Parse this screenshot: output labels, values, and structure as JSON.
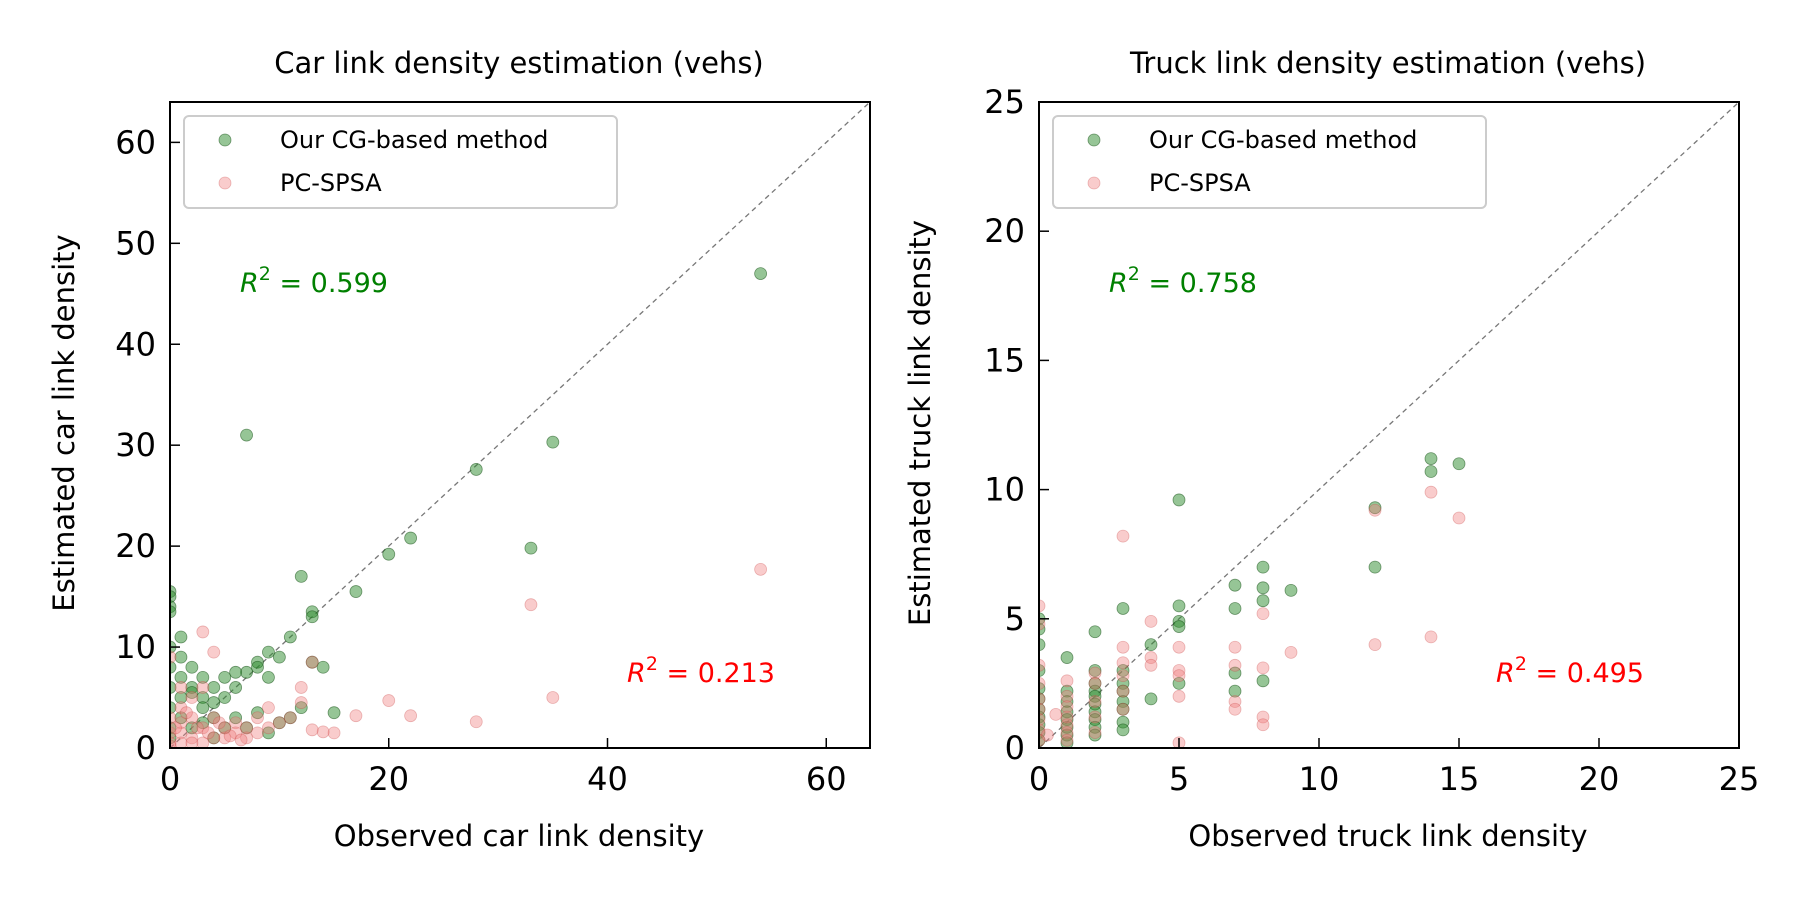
{
  "chart_data": [
    {
      "type": "scatter",
      "title": "Car link density estimation (vehs)",
      "xlabel": "Observed car link density",
      "ylabel": "Estimated car link density",
      "xlim": [
        0,
        64
      ],
      "ylim": [
        0,
        64
      ],
      "xticks": [
        0,
        20,
        40,
        60
      ],
      "yticks": [
        0,
        10,
        20,
        30,
        40,
        50,
        60
      ],
      "diagonal": true,
      "legend": {
        "position": "top-left",
        "entries": [
          "Our CG-based method",
          "PC-SPSA"
        ]
      },
      "annotations": [
        {
          "series": "Our CG-based method",
          "r2_label": "= 0.599",
          "anchor": "upper-left"
        },
        {
          "series": "PC-SPSA",
          "r2_label": "= 0.213",
          "anchor": "lower-right"
        }
      ],
      "series": [
        {
          "name": "Our CG-based method",
          "color": "#2e8b2e",
          "points": [
            [
              54,
              47
            ],
            [
              35,
              30.3
            ],
            [
              28,
              27.6
            ],
            [
              7,
              31
            ],
            [
              22,
              20.8
            ],
            [
              20,
              19.2
            ],
            [
              33,
              19.8
            ],
            [
              17,
              15.5
            ],
            [
              12,
              17
            ],
            [
              13,
              13.5
            ],
            [
              13,
              13
            ],
            [
              11,
              11
            ],
            [
              14,
              8
            ],
            [
              15,
              3.5
            ],
            [
              10,
              9
            ],
            [
              9,
              9.5
            ],
            [
              9,
              7
            ],
            [
              8,
              8.5
            ],
            [
              8,
              8
            ],
            [
              7,
              7.5
            ],
            [
              6,
              7.5
            ],
            [
              6,
              6
            ],
            [
              5,
              7
            ],
            [
              5,
              5
            ],
            [
              4,
              6
            ],
            [
              4,
              4.5
            ],
            [
              3,
              5
            ],
            [
              3,
              4
            ],
            [
              3,
              7
            ],
            [
              2,
              6
            ],
            [
              2,
              5.5
            ],
            [
              2,
              8
            ],
            [
              1,
              11
            ],
            [
              1,
              9
            ],
            [
              1,
              7
            ],
            [
              1,
              5
            ],
            [
              1,
              3
            ],
            [
              0,
              15.5
            ],
            [
              0,
              15
            ],
            [
              0,
              14
            ],
            [
              0,
              13.5
            ],
            [
              0,
              10
            ],
            [
              0,
              8
            ],
            [
              0,
              6
            ],
            [
              0,
              4
            ],
            [
              0,
              2
            ],
            [
              0,
              1
            ],
            [
              2,
              2
            ],
            [
              3,
              2.5
            ],
            [
              4,
              3
            ],
            [
              4,
              1
            ],
            [
              5,
              2
            ],
            [
              6,
              3
            ],
            [
              7,
              2
            ],
            [
              9,
              1.5
            ],
            [
              10,
              2.5
            ],
            [
              11,
              3
            ],
            [
              13,
              8.5
            ],
            [
              12,
              4
            ],
            [
              8,
              3.5
            ]
          ]
        },
        {
          "name": "PC-SPSA",
          "color": "#f08080",
          "points": [
            [
              54,
              17.7
            ],
            [
              33,
              14.2
            ],
            [
              35,
              5
            ],
            [
              28,
              2.6
            ],
            [
              22,
              3.2
            ],
            [
              20,
              4.7
            ],
            [
              17,
              3.2
            ],
            [
              15,
              1.5
            ],
            [
              14,
              1.6
            ],
            [
              13,
              1.8
            ],
            [
              13,
              8.5
            ],
            [
              12,
              6
            ],
            [
              12,
              4.5
            ],
            [
              11,
              3
            ],
            [
              10,
              2.5
            ],
            [
              9,
              4
            ],
            [
              9,
              2
            ],
            [
              8,
              3
            ],
            [
              8,
              1.5
            ],
            [
              7,
              2
            ],
            [
              7,
              1
            ],
            [
              6,
              2.5
            ],
            [
              6,
              1.5
            ],
            [
              5,
              2
            ],
            [
              5,
              1
            ],
            [
              4,
              9.5
            ],
            [
              4,
              3
            ],
            [
              4,
              1
            ],
            [
              3,
              11.5
            ],
            [
              3,
              6
            ],
            [
              3,
              2
            ],
            [
              3,
              0.5
            ],
            [
              2,
              5
            ],
            [
              2,
              3
            ],
            [
              2,
              1
            ],
            [
              2,
              0.5
            ],
            [
              1,
              6
            ],
            [
              1,
              4
            ],
            [
              1,
              2.5
            ],
            [
              1,
              1.5
            ],
            [
              1,
              0.5
            ],
            [
              0,
              9
            ],
            [
              0,
              3
            ],
            [
              0,
              1.5
            ],
            [
              0,
              0.5
            ],
            [
              0,
              0.2
            ],
            [
              0.5,
              2
            ],
            [
              1.5,
              3.5
            ],
            [
              2.5,
              2
            ],
            [
              3.5,
              1.5
            ],
            [
              4.5,
              2.5
            ],
            [
              5.5,
              1.2
            ],
            [
              6.5,
              0.8
            ]
          ]
        }
      ]
    },
    {
      "type": "scatter",
      "title": "Truck link density estimation (vehs)",
      "xlabel": "Observed truck link density",
      "ylabel": "Estimated truck link density",
      "xlim": [
        0,
        25
      ],
      "ylim": [
        0,
        25
      ],
      "xticks": [
        0,
        5,
        10,
        15,
        20,
        25
      ],
      "yticks": [
        0,
        5,
        10,
        15,
        20,
        25
      ],
      "diagonal": true,
      "legend": {
        "position": "top-left",
        "entries": [
          "Our CG-based method",
          "PC-SPSA"
        ]
      },
      "annotations": [
        {
          "series": "Our CG-based method",
          "r2_label": "= 0.758",
          "anchor": "upper-left"
        },
        {
          "series": "PC-SPSA",
          "r2_label": "= 0.495",
          "anchor": "lower-right"
        }
      ],
      "series": [
        {
          "name": "Our CG-based method",
          "color": "#2e8b2e",
          "points": [
            [
              15,
              11
            ],
            [
              14,
              11.2
            ],
            [
              14,
              10.7
            ],
            [
              12,
              9.3
            ],
            [
              12,
              7
            ],
            [
              9,
              6.1
            ],
            [
              8,
              7
            ],
            [
              8,
              6.2
            ],
            [
              8,
              5.7
            ],
            [
              8,
              2.6
            ],
            [
              7,
              6.3
            ],
            [
              7,
              5.4
            ],
            [
              7,
              2.9
            ],
            [
              7,
              2.2
            ],
            [
              5,
              9.6
            ],
            [
              5,
              5.5
            ],
            [
              5,
              4.9
            ],
            [
              5,
              4.7
            ],
            [
              5,
              2.5
            ],
            [
              4,
              4
            ],
            [
              4,
              1.9
            ],
            [
              3,
              5.4
            ],
            [
              3,
              3
            ],
            [
              3,
              2.5
            ],
            [
              3,
              2.2
            ],
            [
              3,
              1.8
            ],
            [
              3,
              1.5
            ],
            [
              3,
              1
            ],
            [
              3,
              0.7
            ],
            [
              2,
              4.5
            ],
            [
              2,
              3
            ],
            [
              2,
              2.5
            ],
            [
              2,
              2.2
            ],
            [
              2,
              2
            ],
            [
              2,
              1.7
            ],
            [
              2,
              1.4
            ],
            [
              2,
              1.1
            ],
            [
              2,
              0.8
            ],
            [
              2,
              0.5
            ],
            [
              1,
              3.5
            ],
            [
              1,
              2.2
            ],
            [
              1,
              1.8
            ],
            [
              1,
              1.4
            ],
            [
              1,
              1.1
            ],
            [
              1,
              0.8
            ],
            [
              1,
              0.5
            ],
            [
              1,
              0.2
            ],
            [
              0,
              5
            ],
            [
              0,
              4.6
            ],
            [
              0,
              4
            ],
            [
              0,
              3
            ],
            [
              0,
              2.3
            ],
            [
              0,
              1.9
            ],
            [
              0,
              1.5
            ],
            [
              0,
              1.2
            ],
            [
              0,
              0.9
            ],
            [
              0,
              0.6
            ],
            [
              0,
              0.3
            ]
          ]
        },
        {
          "name": "PC-SPSA",
          "color": "#f08080",
          "points": [
            [
              15,
              8.9
            ],
            [
              14,
              9.9
            ],
            [
              14,
              4.3
            ],
            [
              12,
              9.2
            ],
            [
              12,
              4
            ],
            [
              9,
              3.7
            ],
            [
              8,
              5.2
            ],
            [
              8,
              3.1
            ],
            [
              8,
              1.2
            ],
            [
              8,
              0.9
            ],
            [
              7,
              3.9
            ],
            [
              7,
              3.2
            ],
            [
              7,
              1.8
            ],
            [
              7,
              1.5
            ],
            [
              5,
              3.9
            ],
            [
              5,
              3
            ],
            [
              5,
              2.8
            ],
            [
              5,
              2
            ],
            [
              5,
              0.2
            ],
            [
              4,
              4.9
            ],
            [
              4,
              3.5
            ],
            [
              4,
              3.2
            ],
            [
              3,
              8.2
            ],
            [
              3,
              3.9
            ],
            [
              3,
              3.3
            ],
            [
              3,
              2.8
            ],
            [
              3,
              2.2
            ],
            [
              3,
              1.5
            ],
            [
              2,
              2.9
            ],
            [
              2,
              2.5
            ],
            [
              2,
              1.8
            ],
            [
              2,
              1.2
            ],
            [
              2,
              0.6
            ],
            [
              1,
              2.6
            ],
            [
              1,
              2
            ],
            [
              1,
              1.6
            ],
            [
              1,
              1.2
            ],
            [
              1,
              0.9
            ],
            [
              1,
              0.6
            ],
            [
              1,
              0.3
            ],
            [
              0,
              5.5
            ],
            [
              0,
              4.8
            ],
            [
              0,
              3.2
            ],
            [
              0,
              2.5
            ],
            [
              0,
              1.9
            ],
            [
              0,
              1.5
            ],
            [
              0,
              1.1
            ],
            [
              0,
              0.7
            ],
            [
              0,
              0.3
            ],
            [
              0.3,
              0.5
            ],
            [
              0.6,
              1.3
            ]
          ]
        }
      ]
    }
  ]
}
